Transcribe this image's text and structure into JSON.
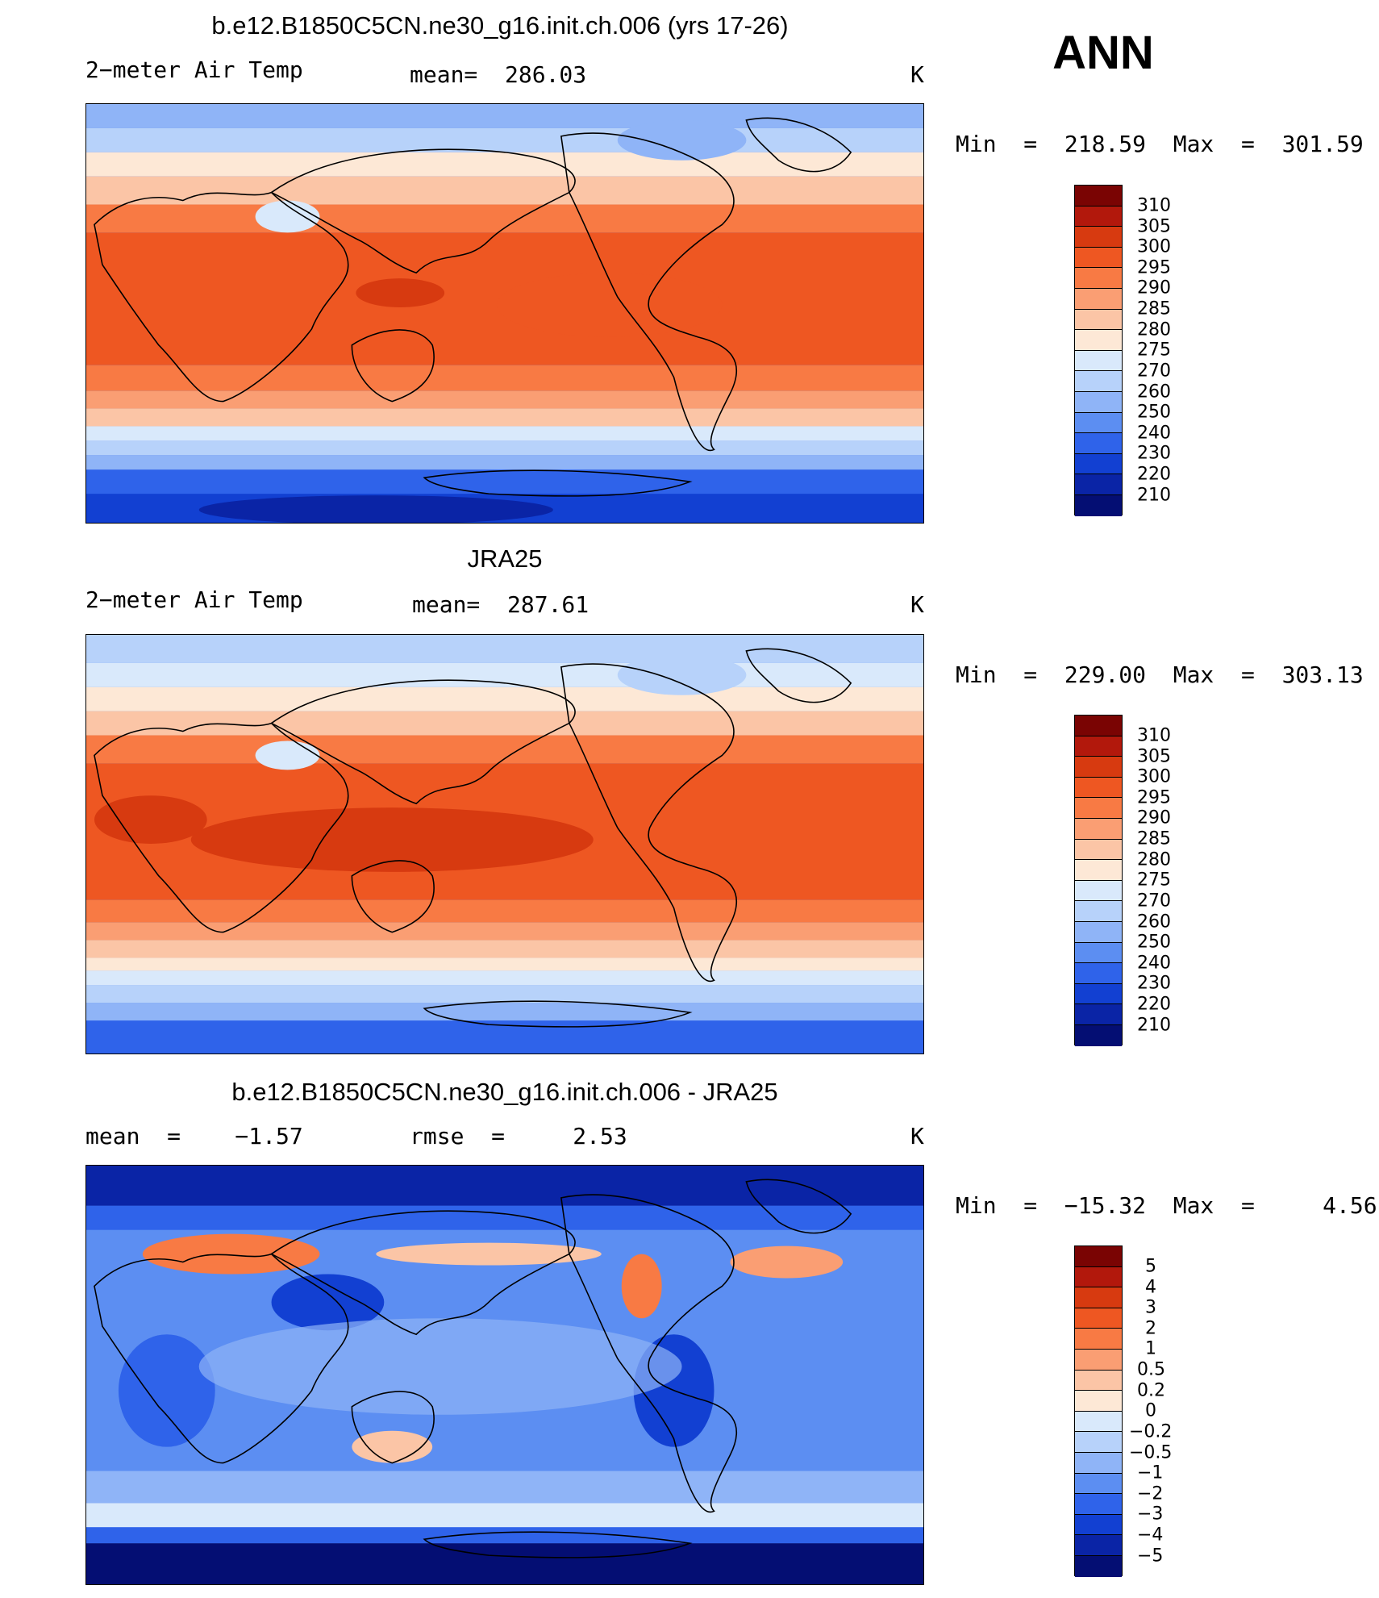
{
  "season": "ANN",
  "panels": [
    {
      "title": "b.e12.B1850C5CN.ne30_g16.init.ch.006 (yrs 17-26)",
      "left_label": "2−meter Air Temp",
      "center_label": "mean=  286.03",
      "units": "K",
      "minmax": "Min  =  218.59  Max  =  301.59",
      "colorbar": [
        "310",
        "305",
        "300",
        "295",
        "290",
        "285",
        "280",
        "275",
        "270",
        "260",
        "250",
        "240",
        "230",
        "220",
        "210"
      ]
    },
    {
      "title": "JRA25",
      "left_label": "2−meter Air Temp",
      "center_label": "mean=  287.61",
      "units": "K",
      "minmax": "Min  =  229.00  Max  =  303.13",
      "colorbar": [
        "310",
        "305",
        "300",
        "295",
        "290",
        "285",
        "280",
        "275",
        "270",
        "260",
        "250",
        "240",
        "230",
        "220",
        "210"
      ]
    },
    {
      "title": "b.e12.B1850C5CN.ne30_g16.init.ch.006 - JRA25",
      "left_label": "mean  =    −1.57",
      "center_label": "rmse  =     2.53",
      "units": "K",
      "minmax": "Min  =  −15.32  Max  =     4.56",
      "colorbar": [
        "5",
        "4",
        "3",
        "2",
        "1",
        "0.5",
        "0.2",
        "0",
        "−0.2",
        "−0.5",
        "−1",
        "−2",
        "−3",
        "−4",
        "−5"
      ]
    }
  ],
  "colors": {
    "temp_scale": [
      "#7a0403",
      "#b2180c",
      "#d73a10",
      "#ee5722",
      "#f87a44",
      "#fa9e73",
      "#fbc5a6",
      "#fde8d6",
      "#d9e9fb",
      "#b7d2fa",
      "#8fb4f7",
      "#5c8ef2",
      "#2f63ea",
      "#1240d2",
      "#0a24a6",
      "#040e73"
    ],
    "coast": "#000000"
  }
}
